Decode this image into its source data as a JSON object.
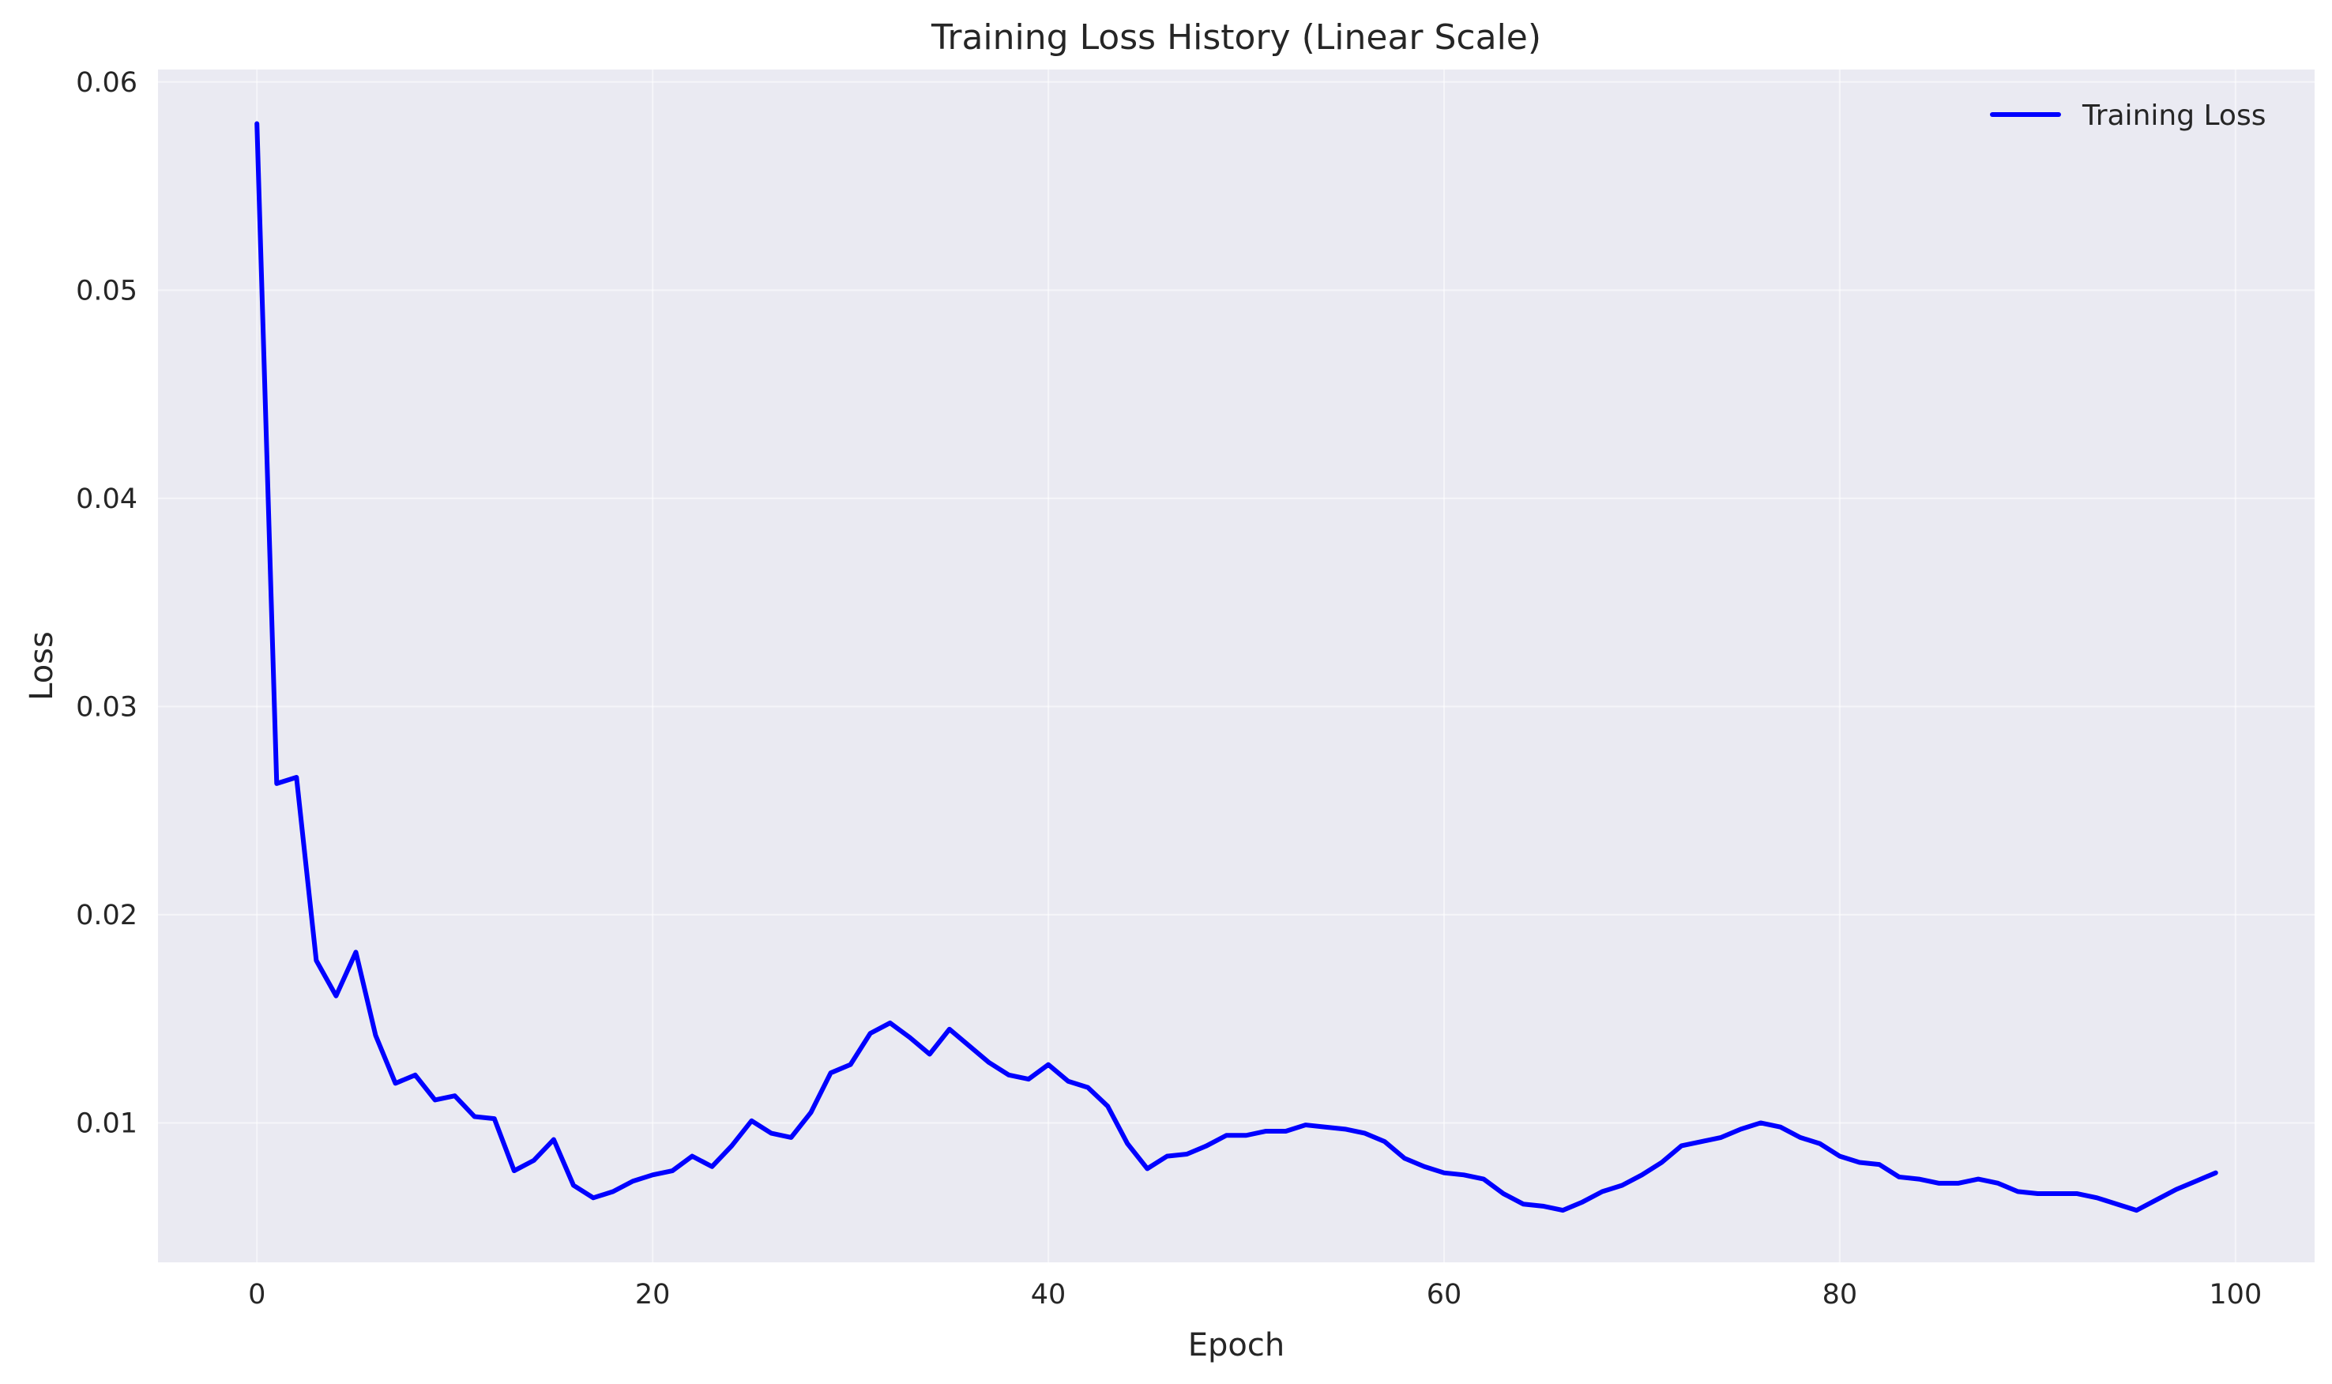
{
  "chart_data": {
    "type": "line",
    "title": "Training Loss History (Linear Scale)",
    "xlabel": "Epoch",
    "ylabel": "Loss",
    "xlim": [
      -5,
      104
    ],
    "ylim": [
      0.0033,
      0.0606
    ],
    "xticks": [
      0,
      20,
      40,
      60,
      80,
      100
    ],
    "yticks": [
      0.01,
      0.02,
      0.03,
      0.04,
      0.05,
      0.06
    ],
    "xtick_labels": [
      "0",
      "20",
      "40",
      "60",
      "80",
      "100"
    ],
    "ytick_labels": [
      "0.01",
      "0.02",
      "0.03",
      "0.04",
      "0.05",
      "0.06"
    ],
    "grid": true,
    "legend_position": "top-right",
    "background_color": "#eaeaf2",
    "series": [
      {
        "name": "Training Loss",
        "color": "#0000ff",
        "x": [
          0,
          1,
          2,
          3,
          4,
          5,
          6,
          7,
          8,
          9,
          10,
          11,
          12,
          13,
          14,
          15,
          16,
          17,
          18,
          19,
          20,
          21,
          22,
          23,
          24,
          25,
          26,
          27,
          28,
          29,
          30,
          31,
          32,
          33,
          34,
          35,
          36,
          37,
          38,
          39,
          40,
          41,
          42,
          43,
          44,
          45,
          46,
          47,
          48,
          49,
          50,
          51,
          52,
          53,
          54,
          55,
          56,
          57,
          58,
          59,
          60,
          61,
          62,
          63,
          64,
          65,
          66,
          67,
          68,
          69,
          70,
          71,
          72,
          73,
          74,
          75,
          76,
          77,
          78,
          79,
          80,
          81,
          82,
          83,
          84,
          85,
          86,
          87,
          88,
          89,
          90,
          91,
          92,
          93,
          94,
          95,
          96,
          97,
          98,
          99
        ],
        "values": [
          0.058,
          0.0263,
          0.0266,
          0.0178,
          0.0161,
          0.0182,
          0.0142,
          0.0119,
          0.0123,
          0.0111,
          0.0113,
          0.0103,
          0.0102,
          0.0077,
          0.0082,
          0.0092,
          0.007,
          0.0064,
          0.0067,
          0.0072,
          0.0075,
          0.0077,
          0.0084,
          0.0079,
          0.0089,
          0.0101,
          0.0095,
          0.0093,
          0.0105,
          0.0124,
          0.0128,
          0.0143,
          0.0148,
          0.0141,
          0.0133,
          0.0145,
          0.0137,
          0.0129,
          0.0123,
          0.0121,
          0.0128,
          0.012,
          0.0117,
          0.0108,
          0.009,
          0.0078,
          0.0084,
          0.0085,
          0.0089,
          0.0094,
          0.0094,
          0.0096,
          0.0096,
          0.0099,
          0.0098,
          0.0097,
          0.0095,
          0.0091,
          0.0083,
          0.0079,
          0.0076,
          0.0075,
          0.0073,
          0.0066,
          0.0061,
          0.006,
          0.0058,
          0.0062,
          0.0067,
          0.007,
          0.0075,
          0.0081,
          0.0089,
          0.0091,
          0.0093,
          0.0097,
          0.01,
          0.0098,
          0.0093,
          0.009,
          0.0084,
          0.0081,
          0.008,
          0.0074,
          0.0073,
          0.0071,
          0.0071,
          0.0073,
          0.0071,
          0.0067,
          0.0066,
          0.0066,
          0.0066,
          0.0064,
          0.0061,
          0.0058,
          0.0063,
          0.0068,
          0.0072,
          0.0076
        ]
      }
    ]
  }
}
